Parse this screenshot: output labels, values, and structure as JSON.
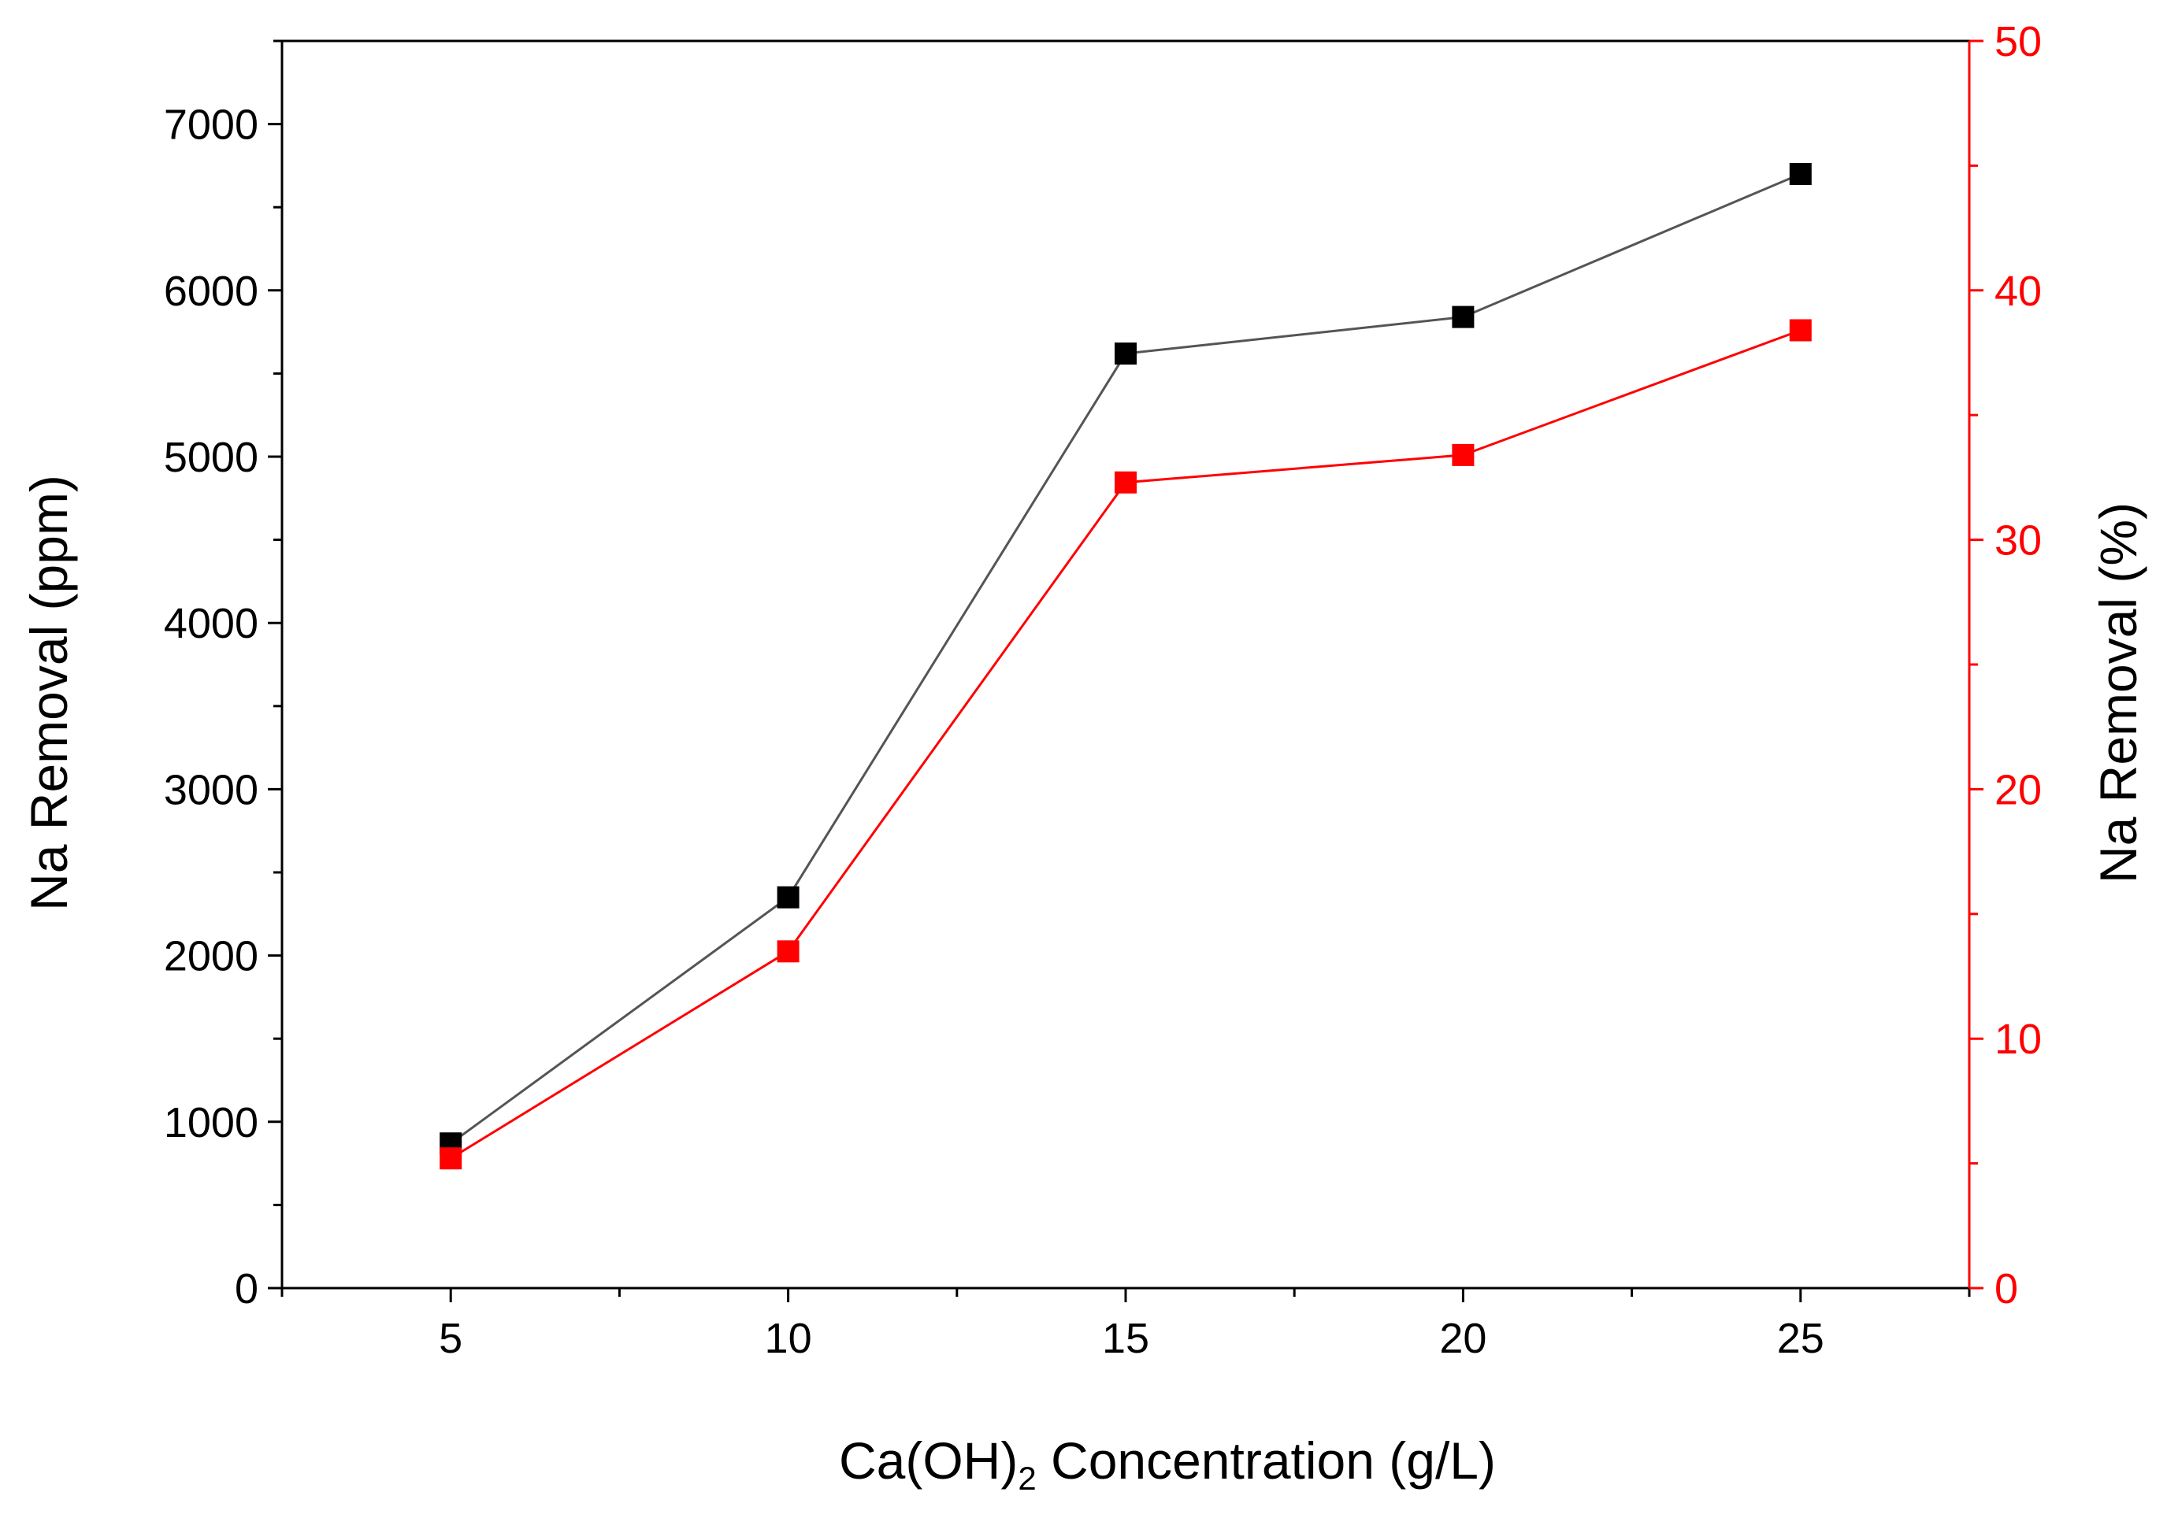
{
  "chart_data": {
    "type": "line",
    "title": "",
    "xlabel": {
      "prefix": "Ca(OH)",
      "subscript": "2",
      "suffix": " Concentration (g/L)"
    },
    "ylabel_left": "Na Removal (ppm)",
    "ylabel_right": "Na Removal (%)",
    "x": [
      5,
      10,
      15,
      20,
      25
    ],
    "xlim": [
      2.5,
      27.5
    ],
    "x_ticks": [
      5,
      10,
      15,
      20,
      25
    ],
    "ylim_left": [
      0,
      7500
    ],
    "ylim_right": [
      0,
      50
    ],
    "y_ticks_left": [
      0,
      1000,
      2000,
      3000,
      4000,
      5000,
      6000,
      7000
    ],
    "y_ticks_right": [
      0,
      10,
      20,
      30,
      40,
      50
    ],
    "grid": false,
    "legend": "none",
    "series": [
      {
        "name": "Na Removal (ppm)",
        "axis": "left",
        "color": "#000000",
        "line_color": "#555555",
        "marker": "square",
        "values": [
          870,
          2350,
          5620,
          5840,
          6700
        ]
      },
      {
        "name": "Na Removal (%)",
        "axis": "right",
        "color": "#ff0000",
        "line_color": "#ff0000",
        "marker": "square",
        "values": [
          5.2,
          13.5,
          32.3,
          33.4,
          38.4
        ]
      }
    ]
  },
  "colors": {
    "left_axis": "#000000",
    "right_axis": "#ff0000",
    "background": "#ffffff"
  }
}
